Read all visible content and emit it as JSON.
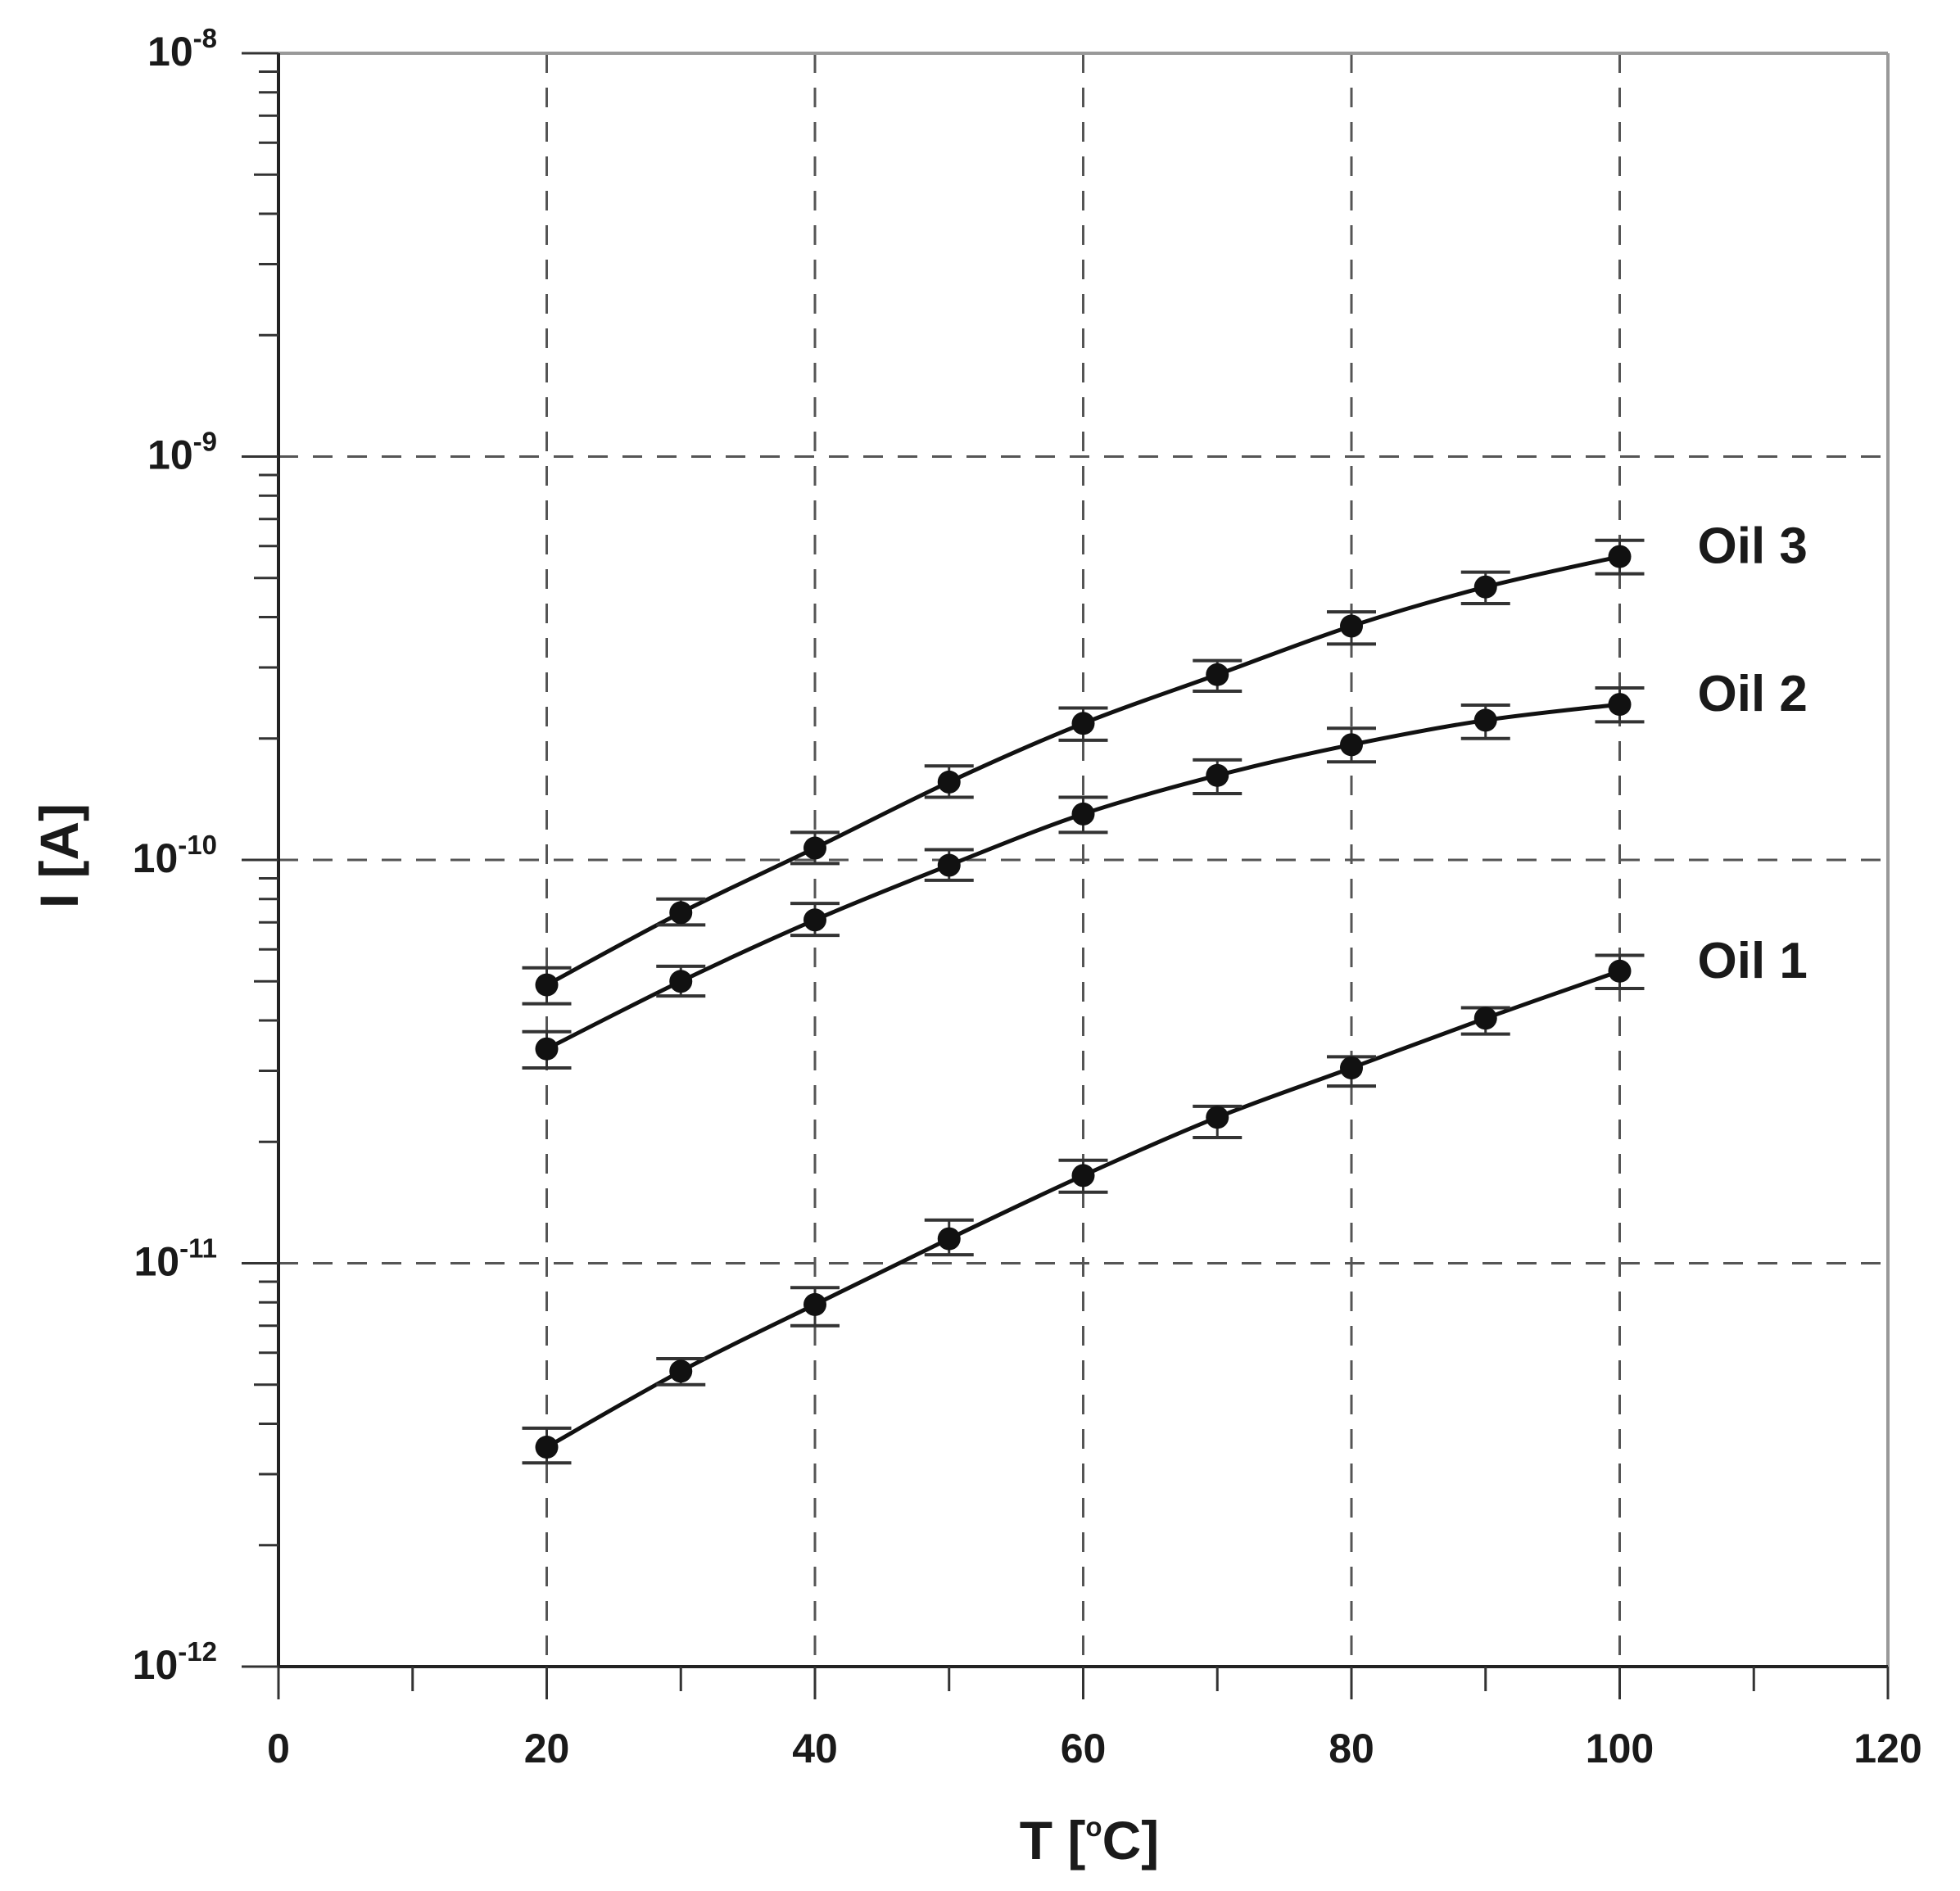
{
  "chart_data": {
    "type": "line",
    "xlabel_main": "T [",
    "xlabel_sup": "o",
    "xlabel_tail": "C]",
    "ylabel": "I [A]",
    "xlim": [
      0,
      120
    ],
    "ylim": [
      1e-12,
      1e-08
    ],
    "y_scale": "log",
    "x_ticks": [
      0,
      20,
      40,
      60,
      80,
      100,
      120
    ],
    "x_tick_labels": [
      "0",
      "20",
      "40",
      "60",
      "80",
      "100",
      "120"
    ],
    "y_ticks": [
      1e-12,
      1e-11,
      1e-10,
      1e-09,
      1e-08
    ],
    "y_tick_labels": [
      {
        "base": "10",
        "exp": "-12"
      },
      {
        "base": "10",
        "exp": "-11"
      },
      {
        "base": "10",
        "exp": "-10"
      },
      {
        "base": "10",
        "exp": "-9"
      },
      {
        "base": "10",
        "exp": "-8"
      }
    ],
    "grid": "dashed at major ticks",
    "x": [
      20,
      30,
      40,
      50,
      60,
      70,
      80,
      90,
      100
    ],
    "series": [
      {
        "name": "Oil 1",
        "values": [
          3.5e-12,
          5.4e-12,
          7.9e-12,
          1.15e-11,
          1.65e-11,
          2.3e-11,
          3.05e-11,
          4.05e-11,
          5.3e-11
        ],
        "err_low": [
          3.2e-12,
          5e-12,
          7e-12,
          1.05e-11,
          1.5e-11,
          2.05e-11,
          2.75e-11,
          3.7e-11,
          4.8e-11
        ],
        "err_high": [
          3.9e-12,
          5.8e-12,
          8.7e-12,
          1.28e-11,
          1.8e-11,
          2.45e-11,
          3.25e-11,
          4.3e-11,
          5.8e-11
        ]
      },
      {
        "name": "Oil 2",
        "values": [
          3.4e-11,
          5e-11,
          7.1e-11,
          9.7e-11,
          1.3e-10,
          1.62e-10,
          1.93e-10,
          2.22e-10,
          2.43e-10
        ],
        "err_low": [
          3.05e-11,
          4.6e-11,
          6.5e-11,
          8.9e-11,
          1.17e-10,
          1.46e-10,
          1.75e-10,
          2e-10,
          2.2e-10
        ],
        "err_high": [
          3.75e-11,
          5.45e-11,
          7.8e-11,
          1.06e-10,
          1.43e-10,
          1.77e-10,
          2.12e-10,
          2.42e-10,
          2.67e-10
        ]
      },
      {
        "name": "Oil 3",
        "values": [
          4.9e-11,
          7.4e-11,
          1.07e-10,
          1.56e-10,
          2.18e-10,
          2.88e-10,
          3.8e-10,
          4.75e-10,
          5.65e-10
        ],
        "err_low": [
          4.4e-11,
          6.9e-11,
          9.8e-11,
          1.43e-10,
          1.98e-10,
          2.62e-10,
          3.43e-10,
          4.32e-10,
          5.12e-10
        ],
        "err_high": [
          5.4e-11,
          8e-11,
          1.17e-10,
          1.71e-10,
          2.38e-10,
          3.12e-10,
          4.12e-10,
          5.17e-10,
          6.2e-10
        ]
      }
    ]
  }
}
